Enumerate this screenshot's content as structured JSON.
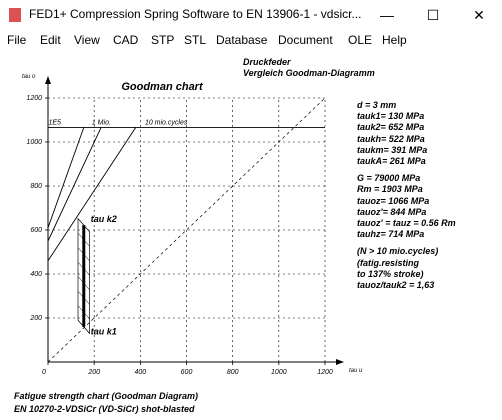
{
  "window": {
    "title": "FED1+  Compression Spring Software to EN 13906-1  -  vdsicr...",
    "minimize_glyph": "—",
    "maximize_glyph": "☐",
    "close_glyph": "✕"
  },
  "menu": [
    "File",
    "Edit",
    "View",
    "CAD",
    "STP",
    "STL",
    "Database",
    "Document",
    "OLE",
    "Help"
  ],
  "header": {
    "line1": "Druckfeder",
    "line2": "Vergleich Goodman-Diagramm"
  },
  "chart_data": {
    "type": "line",
    "title": "Goodman chart",
    "xlabel": "tau u",
    "ylabel": "tau o",
    "xlim": [
      0,
      1200
    ],
    "ylim": [
      0,
      1200
    ],
    "x_ticks": [
      0,
      200,
      400,
      600,
      800,
      1000,
      1200
    ],
    "y_ticks": [
      200,
      400,
      600,
      800,
      1000,
      1200
    ],
    "origin_label": "0",
    "grid": "dashed",
    "limit_line_y": 1066,
    "series": [
      {
        "name": "1E5",
        "x": [
          0,
          155
        ],
        "y": [
          610,
          1066
        ]
      },
      {
        "name": "1 Mio.",
        "x": [
          0,
          230
        ],
        "y": [
          550,
          1066
        ]
      },
      {
        "name": "10 mio.cycles",
        "x": [
          0,
          380
        ],
        "y": [
          460,
          1066
        ]
      }
    ],
    "tau_k1": 130,
    "tau_k2": 652,
    "tau_k2_label": "tau k2",
    "tau_k1_label": "tau k1",
    "band_lower_left": [
      [
        130,
        130
      ],
      [
        130,
        652
      ]
    ],
    "band_lower_right": [
      [
        180,
        130
      ],
      [
        180,
        652
      ]
    ]
  },
  "results": [
    "d  = 3 mm",
    "tauk1=  130 MPa",
    "tauk2=  652 MPa",
    "taukh=  522 MPa",
    "taukm=  391 MPa",
    "taukA=  261 MPa",
    "",
    "G  =  79000 MPa",
    "Rm =  1903 MPa",
    "tauoz= 1066 MPa",
    "tauoz'=  844 MPa",
    "tauoz' = tauz = 0.56 Rm",
    "tauhz=  714 MPa",
    "",
    "(N > 10 mio.cycles)",
    "(fatig.resisting",
    "to 137% stroke)",
    "tauoz/tauk2 = 1,63"
  ],
  "footer": {
    "line1": "Fatigue strength chart (Goodman Diagram)",
    "line2": "EN 10270-2-VDSiCr (VD-SiCr) shot-blasted"
  }
}
